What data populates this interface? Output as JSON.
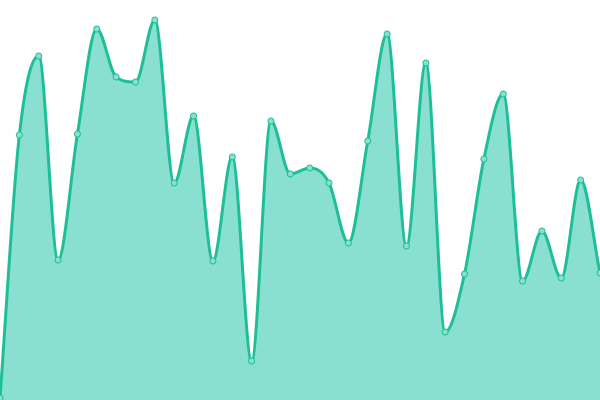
{
  "chart_data": {
    "type": "area",
    "curve": "smooth",
    "grid": false,
    "axes_visible": false,
    "ylim": [
      0,
      400
    ],
    "x": [
      0,
      1,
      2,
      3,
      4,
      5,
      6,
      7,
      8,
      9,
      10,
      11,
      12,
      13,
      14,
      15,
      16,
      17,
      18,
      19,
      20,
      21,
      22,
      23,
      24,
      25,
      26,
      27,
      28,
      29,
      30,
      31
    ],
    "values": [
      2,
      265,
      344,
      140,
      266,
      371,
      323,
      318,
      380,
      217,
      284,
      139,
      243,
      39,
      279,
      226,
      232,
      217,
      157,
      259,
      366,
      154,
      337,
      68,
      126,
      241,
      306,
      119,
      169,
      122,
      220,
      127
    ],
    "colors": {
      "line": "#1dbf96",
      "fill": "#8ae0d0",
      "point_fill": "#8ae0d0",
      "point_stroke": "#1dbf96"
    }
  }
}
